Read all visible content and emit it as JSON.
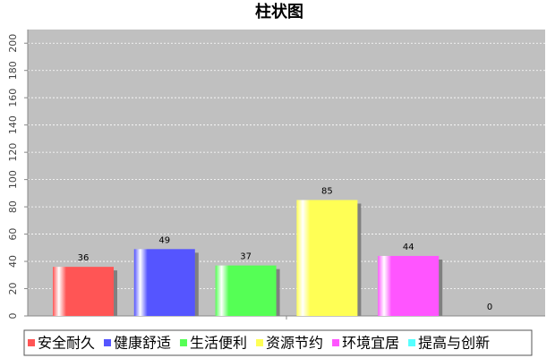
{
  "chart_data": {
    "type": "bar",
    "title": "柱状图",
    "categories": [
      null
    ],
    "series": [
      {
        "name": "安全耐久",
        "color": "#ff5555",
        "values": [
          36
        ]
      },
      {
        "name": "健康舒适",
        "color": "#5555ff",
        "values": [
          49
        ]
      },
      {
        "name": "生活便利",
        "color": "#55ff55",
        "values": [
          37
        ]
      },
      {
        "name": "资源节约",
        "color": "#ffff55",
        "values": [
          85
        ]
      },
      {
        "name": "环境宜居",
        "color": "#ff55ff",
        "values": [
          44
        ]
      },
      {
        "name": "提高与创新",
        "color": "#55ffff",
        "values": [
          0
        ]
      }
    ],
    "ylim": [
      0,
      210
    ],
    "yticks": [
      0,
      20,
      40,
      60,
      80,
      100,
      120,
      140,
      160,
      180,
      200
    ],
    "grid": true,
    "legend": "bottom"
  }
}
